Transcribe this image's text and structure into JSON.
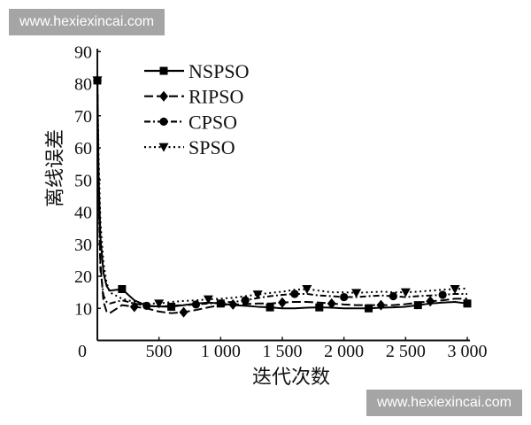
{
  "watermarks": [
    "www.hexiexincai.com",
    "www.hexiexincai.com"
  ],
  "chart_data": {
    "type": "line",
    "xlabel": "迭代次数",
    "ylabel": "离线误差",
    "xlim": [
      0,
      3000
    ],
    "ylim": [
      0,
      90
    ],
    "x_ticks": [
      0,
      500,
      1000,
      1500,
      2000,
      2500,
      3000
    ],
    "x_tick_labels": [
      "0",
      "500",
      "1 000",
      "1 500",
      "2 000",
      "2 500",
      "3 000"
    ],
    "y_ticks": [
      10,
      20,
      30,
      40,
      50,
      60,
      70,
      80,
      90
    ],
    "y_tick_labels": [
      "10",
      "20",
      "30",
      "40",
      "50",
      "60",
      "70",
      "80",
      "90"
    ],
    "grid": false,
    "legend_position": "top-left",
    "x": [
      0,
      10,
      25,
      50,
      75,
      100,
      200,
      300,
      400,
      500,
      600,
      700,
      800,
      900,
      1000,
      1100,
      1200,
      1300,
      1400,
      1500,
      1600,
      1700,
      1800,
      1900,
      2000,
      2100,
      2200,
      2300,
      2400,
      2500,
      2600,
      2700,
      2800,
      2900,
      3000
    ],
    "series": [
      {
        "name": "NSPSO",
        "color": "#000000",
        "line_style": "solid",
        "marker": "square",
        "values": [
          81,
          52,
          32,
          21,
          17,
          15.5,
          16,
          12.5,
          10.8,
          10.6,
          10.5,
          11,
          11.5,
          11.8,
          11.5,
          11,
          10.8,
          10.5,
          10.3,
          10,
          10,
          10.2,
          10.3,
          10.2,
          10,
          10,
          10,
          10.2,
          10.3,
          10.5,
          11,
          11.5,
          11.8,
          12,
          11.5
        ]
      },
      {
        "name": "RIPSO",
        "color": "#000000",
        "line_style": "dashed",
        "marker": "diamond",
        "values": [
          81,
          48,
          24,
          12,
          9,
          8.5,
          11,
          10.5,
          10,
          9,
          8.5,
          8.8,
          9.5,
          10.3,
          11,
          11.2,
          11.3,
          11.5,
          11.5,
          11.8,
          12,
          12,
          11.8,
          11.5,
          11.2,
          11,
          11,
          11,
          11,
          11.3,
          11.8,
          12.2,
          12.5,
          13,
          13
        ]
      },
      {
        "name": "CPSO",
        "color": "#000000",
        "line_style": "dash-dot",
        "marker": "circle",
        "values": [
          81,
          45,
          22,
          14,
          12,
          11.5,
          12.5,
          11.5,
          10.8,
          10.5,
          10.8,
          11,
          11.2,
          11.5,
          11.8,
          12,
          12.5,
          13.2,
          13.8,
          14.2,
          14.5,
          14.5,
          14,
          13.8,
          13.5,
          13.5,
          13.8,
          14,
          13.8,
          13.5,
          13.8,
          14,
          14.2,
          14.5,
          14.5
        ]
      },
      {
        "name": "SPSO",
        "color": "#000000",
        "line_style": "dotted",
        "marker": "triangle-down",
        "values": [
          81,
          58,
          37,
          24,
          18,
          15,
          13,
          12,
          11.5,
          11.5,
          12,
          12.3,
          12.5,
          12.8,
          13,
          13.3,
          13.8,
          14.3,
          14.8,
          15.2,
          15.8,
          16,
          15.5,
          15,
          15,
          14.8,
          15,
          15.2,
          15,
          15,
          15.2,
          15.5,
          15.8,
          16,
          16.2
        ]
      }
    ]
  }
}
